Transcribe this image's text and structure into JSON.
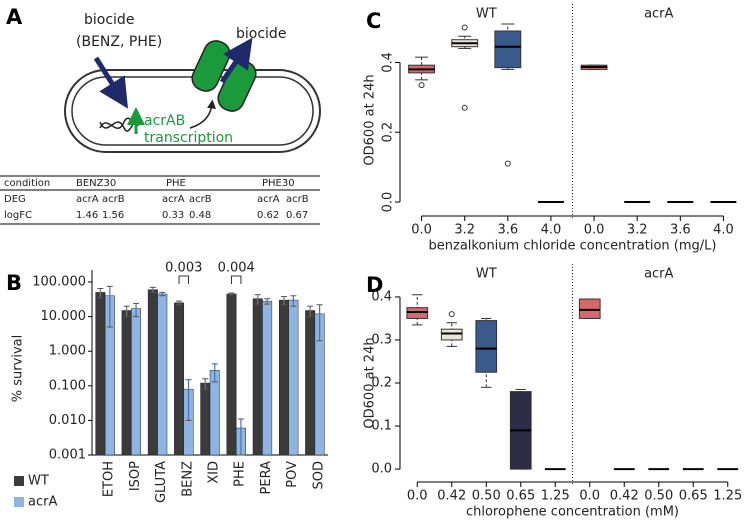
{
  "panel_labels": [
    "A",
    "B",
    "C",
    "D"
  ],
  "diagram": {
    "biocide_in": [
      "biocide",
      "(BENZ, PHE)"
    ],
    "biocide_out": "biocide",
    "gene": "acrAB",
    "process": "transcription"
  },
  "table": {
    "header": [
      "condition",
      "BENZ30",
      "PHE",
      "PHE30"
    ],
    "rows": [
      [
        "DEG",
        "acrA",
        "acrB",
        "acrA",
        "acrB",
        "acrA",
        "acrB"
      ],
      [
        "logFC",
        1.46,
        1.56,
        0.33,
        0.48,
        0.62,
        0.67
      ]
    ]
  },
  "chart_data": [
    {
      "type": "bar",
      "log_scale": true,
      "ylabel": "% survival",
      "categories": [
        "ETOH",
        "ISOP",
        "GLUTA",
        "BENZ",
        "XID",
        "PHE",
        "PERA",
        "POV",
        "SOD"
      ],
      "series": [
        {
          "name": "WT",
          "color": "#3b3b3b",
          "values": [
            50,
            15,
            60,
            25,
            0.12,
            45,
            33,
            30,
            15
          ],
          "errors": [
            15,
            5,
            10,
            3,
            0.04,
            3,
            10,
            8,
            5
          ]
        },
        {
          "name": "acrA",
          "color": "#8db4e2",
          "values": [
            40,
            17,
            45,
            0.08,
            0.28,
            0.006,
            28,
            30,
            12
          ],
          "errors": [
            35,
            7,
            5,
            0.07,
            0.15,
            0.005,
            5,
            10,
            10
          ]
        }
      ],
      "ylim": [
        0.001,
        100
      ],
      "yticks": [
        {
          "value": 0.001,
          "label": "0.001"
        },
        {
          "value": 0.01,
          "label": "0.010"
        },
        {
          "value": 0.1,
          "label": "0.100"
        },
        {
          "value": 1,
          "label": "1.000"
        },
        {
          "value": 10,
          "label": "10.000"
        },
        {
          "value": 100,
          "label": "100.000"
        }
      ],
      "annotations": [
        {
          "text": "0.003",
          "category": "BENZ"
        },
        {
          "text": "0.004",
          "category": "PHE"
        }
      ],
      "legend": "bottom-left"
    },
    {
      "type": "box",
      "ylabel": "OD600 at 24h",
      "xlabel": "benzalkonium chloride concentration (mg/L)",
      "groups": [
        "WT",
        "acrA"
      ],
      "categories": [
        "0.0",
        "3.2",
        "3.6",
        "4.0",
        "0.0",
        "3.2",
        "3.6",
        "4.0"
      ],
      "boxes": [
        {
          "color": "#d46a6f",
          "whislo": 0.35,
          "q1": 0.37,
          "median": 0.38,
          "q3": 0.392,
          "whishi": 0.415,
          "outliers": [
            0.335
          ]
        },
        {
          "color": "#ebe6da",
          "whislo": 0.44,
          "q1": 0.445,
          "median": 0.455,
          "q3": 0.465,
          "whishi": 0.475,
          "outliers": [
            0.5,
            0.27
          ]
        },
        {
          "color": "#3a5a8c",
          "whislo": 0.38,
          "q1": 0.385,
          "median": 0.445,
          "q3": 0.49,
          "whishi": 0.51,
          "outliers": [
            0.11
          ]
        },
        {
          "whislo": 0,
          "q1": 0,
          "median": 0,
          "q3": 0,
          "whishi": 0,
          "outliers": []
        },
        {
          "color": "#d46a6f",
          "whislo": 0.38,
          "q1": 0.38,
          "median": 0.387,
          "q3": 0.392,
          "whishi": 0.392,
          "outliers": []
        },
        {
          "whislo": 0,
          "q1": 0,
          "median": 0,
          "q3": 0,
          "whishi": 0,
          "outliers": []
        },
        {
          "whislo": 0,
          "q1": 0,
          "median": 0,
          "q3": 0,
          "whishi": 0,
          "outliers": []
        },
        {
          "whislo": 0,
          "q1": 0,
          "median": 0,
          "q3": 0,
          "whishi": 0,
          "outliers": []
        }
      ],
      "ylim": [
        -0.04,
        0.51
      ],
      "yticks": [
        {
          "value": 0,
          "label": "0.0"
        },
        {
          "value": 0.2,
          "label": "0.2"
        },
        {
          "value": 0.4,
          "label": "0.4"
        }
      ],
      "ytick_rotation": 90
    },
    {
      "type": "box",
      "ylabel": "OD600 at 24h",
      "xlabel": "chlorophene concentration (mM)",
      "groups": [
        "WT",
        "acrA"
      ],
      "categories": [
        "0.0",
        "0.42",
        "0.50",
        "0.65",
        "1.25",
        "0.0",
        "0.42",
        "0.50",
        "0.65",
        "1.25"
      ],
      "boxes": [
        {
          "color": "#d46a6f",
          "whislo": 0.335,
          "q1": 0.35,
          "median": 0.365,
          "q3": 0.375,
          "whishi": 0.405,
          "outliers": []
        },
        {
          "color": "#ebe6da",
          "whislo": 0.285,
          "q1": 0.3,
          "median": 0.315,
          "q3": 0.325,
          "whishi": 0.34,
          "outliers": [
            0.36
          ]
        },
        {
          "color": "#3a5a8c",
          "whislo": 0.19,
          "q1": 0.225,
          "median": 0.28,
          "q3": 0.345,
          "whishi": 0.35,
          "outliers": []
        },
        {
          "color": "#2d2b45",
          "whislo": 0,
          "q1": 0,
          "median": 0.09,
          "q3": 0.18,
          "whishi": 0.185,
          "outliers": []
        },
        {
          "whislo": 0,
          "q1": 0,
          "median": 0,
          "q3": 0,
          "whishi": 0,
          "outliers": []
        },
        {
          "color": "#d46a6f",
          "whislo": 0.35,
          "q1": 0.35,
          "median": 0.37,
          "q3": 0.395,
          "whishi": 0.395,
          "outliers": []
        },
        {
          "whislo": 0,
          "q1": 0,
          "median": 0,
          "q3": 0,
          "whishi": 0,
          "outliers": []
        },
        {
          "whislo": 0,
          "q1": 0,
          "median": 0,
          "q3": 0,
          "whishi": 0,
          "outliers": []
        },
        {
          "whislo": 0,
          "q1": 0,
          "median": 0,
          "q3": 0,
          "whishi": 0,
          "outliers": []
        },
        {
          "whislo": 0,
          "q1": 0,
          "median": 0,
          "q3": 0,
          "whishi": 0,
          "outliers": []
        }
      ],
      "ylim": [
        -0.03,
        0.43
      ],
      "yticks": [
        {
          "value": 0,
          "label": "0.0"
        },
        {
          "value": 0.1,
          "label": "0.1"
        },
        {
          "value": 0.2,
          "label": "0.2"
        },
        {
          "value": 0.3,
          "label": "0.3"
        },
        {
          "value": 0.4,
          "label": "0.4"
        }
      ]
    }
  ]
}
